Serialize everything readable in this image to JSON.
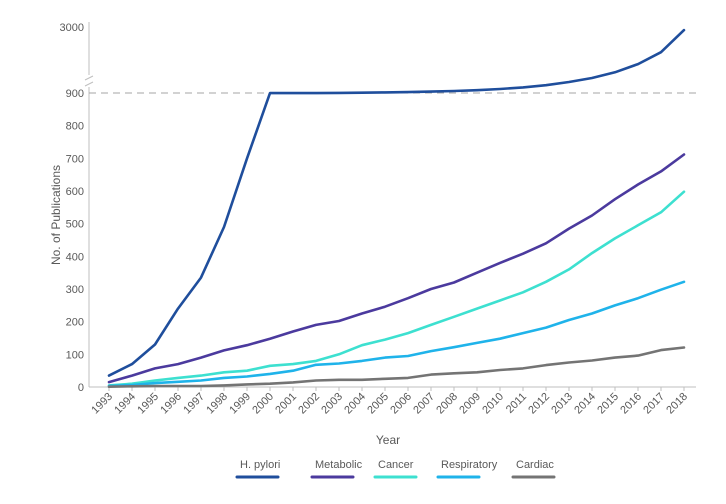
{
  "chart_data": {
    "type": "line",
    "title": "",
    "xlabel": "Year",
    "ylabel": "No. of Publications",
    "x": [
      "1993",
      "1994",
      "1995",
      "1996",
      "1997",
      "1998",
      "1999",
      "2000",
      "2001",
      "2002",
      "2003",
      "2004",
      "2005",
      "2006",
      "2007",
      "2008",
      "2009",
      "2010",
      "2011",
      "2012",
      "2013",
      "2014",
      "2015",
      "2016",
      "2017",
      "2018"
    ],
    "y_ticks_lower": [
      0,
      100,
      200,
      300,
      400,
      500,
      600,
      700,
      800,
      900
    ],
    "y_ticks_upper": [
      3000
    ],
    "ylim": [
      0,
      3000
    ],
    "axis_break": [
      900,
      3000
    ],
    "grid": false,
    "legend_position": "bottom",
    "series": [
      {
        "name": "H. pylori",
        "color": "#1f4e9c",
        "values": [
          35,
          70,
          130,
          240,
          335,
          490,
          700,
          900,
          900,
          900,
          905,
          910,
          920,
          930,
          945,
          965,
          990,
          1030,
          1080,
          1150,
          1250,
          1380,
          1560,
          1820,
          2200,
          2900
        ]
      },
      {
        "name": "Metabolic",
        "color": "#4b3a9e",
        "values": [
          15,
          35,
          57,
          70,
          90,
          112,
          128,
          148,
          170,
          190,
          202,
          225,
          246,
          272,
          300,
          320,
          350,
          380,
          408,
          440,
          485,
          525,
          575,
          620,
          660,
          712
        ]
      },
      {
        "name": "Cancer",
        "color": "#3de0d0",
        "values": [
          5,
          10,
          20,
          28,
          35,
          45,
          50,
          65,
          70,
          80,
          100,
          128,
          145,
          165,
          190,
          215,
          240,
          265,
          290,
          322,
          360,
          410,
          455,
          495,
          535,
          598
        ]
      },
      {
        "name": "Respiratory",
        "color": "#1fb3ea",
        "values": [
          3,
          6,
          12,
          16,
          20,
          28,
          32,
          40,
          50,
          68,
          72,
          80,
          90,
          95,
          110,
          122,
          135,
          148,
          165,
          182,
          205,
          225,
          250,
          272,
          298,
          322
        ]
      },
      {
        "name": "Cardiac",
        "color": "#747474",
        "values": [
          1,
          2,
          3,
          3,
          3,
          5,
          8,
          10,
          14,
          20,
          22,
          22,
          25,
          28,
          38,
          42,
          45,
          52,
          57,
          67,
          75,
          81,
          90,
          96,
          113,
          121
        ]
      }
    ]
  }
}
